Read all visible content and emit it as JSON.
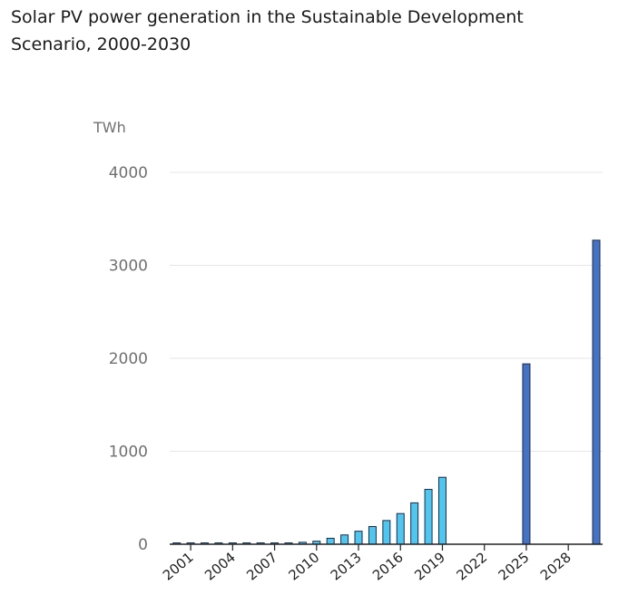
{
  "title": "Solar PV power generation in the Sustainable Development Scenario, 2000-2030",
  "chart_data": {
    "type": "bar",
    "title": "Solar PV power generation in the Sustainable Development Scenario, 2000-2030",
    "ylabel": "TWh",
    "xlabel": "",
    "ylim": [
      0,
      4000
    ],
    "yticks": [
      0,
      1000,
      2000,
      3000,
      4000
    ],
    "xtick_labels": [
      "2001",
      "2004",
      "2007",
      "2010",
      "2013",
      "2016",
      "2019",
      "2022",
      "2025",
      "2028"
    ],
    "grid": true,
    "legend": "none",
    "categories": [
      "2000",
      "2001",
      "2002",
      "2003",
      "2004",
      "2005",
      "2006",
      "2007",
      "2008",
      "2009",
      "2010",
      "2011",
      "2012",
      "2013",
      "2014",
      "2015",
      "2016",
      "2017",
      "2018",
      "2019",
      "2020",
      "2021",
      "2022",
      "2023",
      "2024",
      "2025",
      "2026",
      "2027",
      "2028",
      "2029",
      "2030"
    ],
    "values": [
      1,
      2,
      2,
      3,
      4,
      4,
      6,
      8,
      12,
      21,
      33,
      64,
      100,
      140,
      190,
      255,
      330,
      445,
      590,
      720,
      null,
      null,
      null,
      null,
      null,
      1940,
      null,
      null,
      null,
      null,
      3270
    ],
    "colors": {
      "historical": "#4fc6ef",
      "projection": "#4472c4"
    },
    "projection_start": "2025"
  }
}
